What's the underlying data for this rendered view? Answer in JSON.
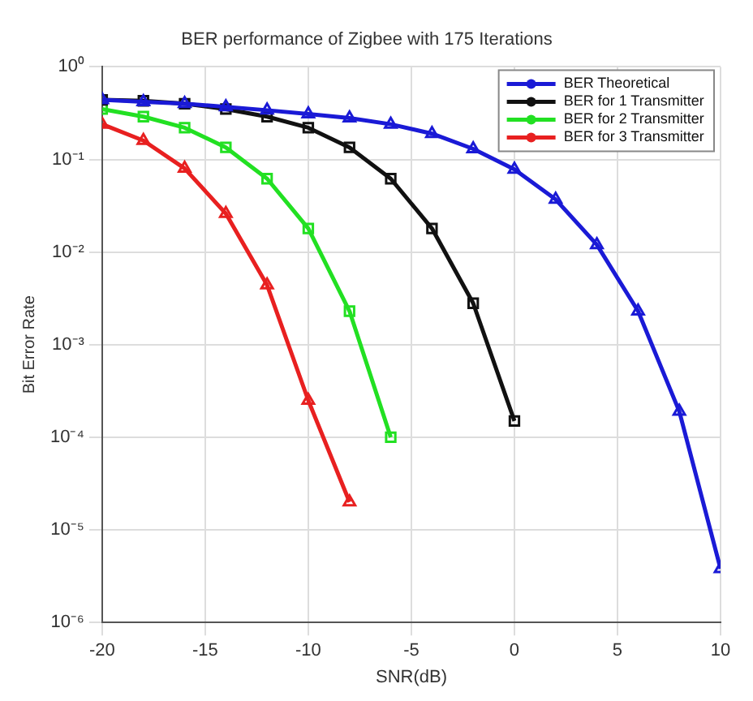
{
  "chart_data": {
    "type": "line",
    "title": "BER performance of Zigbee with 175 Iterations",
    "xlabel": "SNR(dB)",
    "ylabel": "Bit Error Rate",
    "log": "y",
    "grid": true,
    "legend": "top right",
    "xlim": [
      -20,
      10
    ],
    "xticks": [
      -20,
      -15,
      -10,
      -5,
      0,
      5,
      10
    ],
    "ylim": [
      1e-06,
      1
    ],
    "yticks": [
      {
        "value": 1e-06,
        "label": "10⁻⁶"
      },
      {
        "value": 1e-05,
        "label": "10⁻⁵"
      },
      {
        "value": 0.0001,
        "label": "10⁻⁴"
      },
      {
        "value": 0.001,
        "label": "10⁻³"
      },
      {
        "value": 0.01,
        "label": "10⁻²"
      },
      {
        "value": 0.1,
        "label": "10⁻¹"
      },
      {
        "value": 1,
        "label": "10⁰"
      }
    ],
    "series": [
      {
        "name": "BER Theoretical",
        "color": "#1a1ad6",
        "marker": "triangle",
        "x": [
          -20,
          -18,
          -16,
          -14,
          -12,
          -10,
          -8,
          -6,
          -4,
          -2,
          0,
          2,
          4,
          6,
          8,
          10
        ],
        "values": [
          0.44,
          0.42,
          0.4,
          0.37,
          0.34,
          0.31,
          0.28,
          0.24,
          0.19,
          0.13,
          0.078,
          0.037,
          0.012,
          0.0023,
          0.00019,
          3.8e-06
        ]
      },
      {
        "name": "BER for 1 Transmitter",
        "color": "#111111",
        "marker": "square",
        "x": [
          -20,
          -18,
          -16,
          -14,
          -12,
          -10,
          -8,
          -6,
          -4,
          -2,
          0
        ],
        "values": [
          0.44,
          0.43,
          0.4,
          0.35,
          0.29,
          0.22,
          0.135,
          0.062,
          0.018,
          0.0028,
          0.00015
        ]
      },
      {
        "name": "BER for 2 Transmitter",
        "color": "#22e022",
        "marker": "square",
        "x": [
          -20,
          -18,
          -16,
          -14,
          -12,
          -10,
          -8,
          -6
        ],
        "values": [
          0.35,
          0.29,
          0.22,
          0.135,
          0.062,
          0.018,
          0.0023,
          0.0001
        ]
      },
      {
        "name": "BER for 3 Transmitter",
        "color": "#e82020",
        "marker": "triangle",
        "x": [
          -20,
          -18,
          -16,
          -14,
          -12,
          -10,
          -8
        ],
        "values": [
          0.24,
          0.16,
          0.08,
          0.026,
          0.0044,
          0.00025,
          2e-05
        ]
      }
    ]
  }
}
